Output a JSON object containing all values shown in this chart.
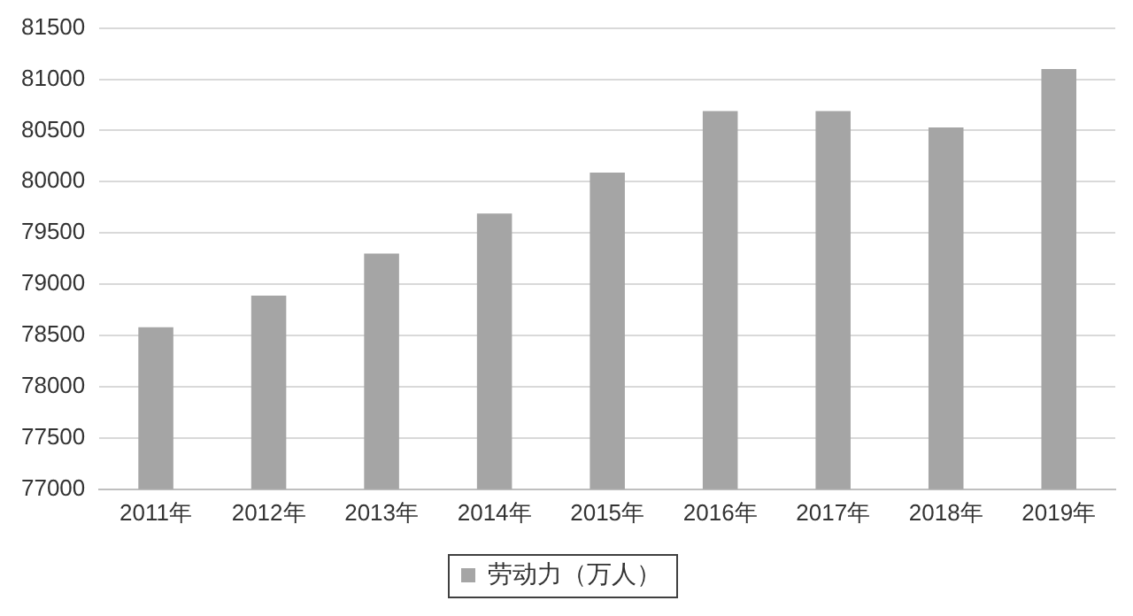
{
  "chart_data": {
    "type": "bar",
    "categories": [
      "2011年",
      "2012年",
      "2013年",
      "2014年",
      "2015年",
      "2016年",
      "2017年",
      "2018年",
      "2019年"
    ],
    "series": [
      {
        "name": "劳动力（万人）",
        "color": "#a5a5a5",
        "values": [
          78580,
          78890,
          79300,
          79690,
          80090,
          80690,
          80690,
          80530,
          81100
        ]
      }
    ],
    "ylim": [
      77000,
      81500
    ],
    "yticks": [
      77000,
      77500,
      78000,
      78500,
      79000,
      79500,
      80000,
      80500,
      81000,
      81500
    ],
    "grid": "y",
    "legend": "bottom"
  }
}
